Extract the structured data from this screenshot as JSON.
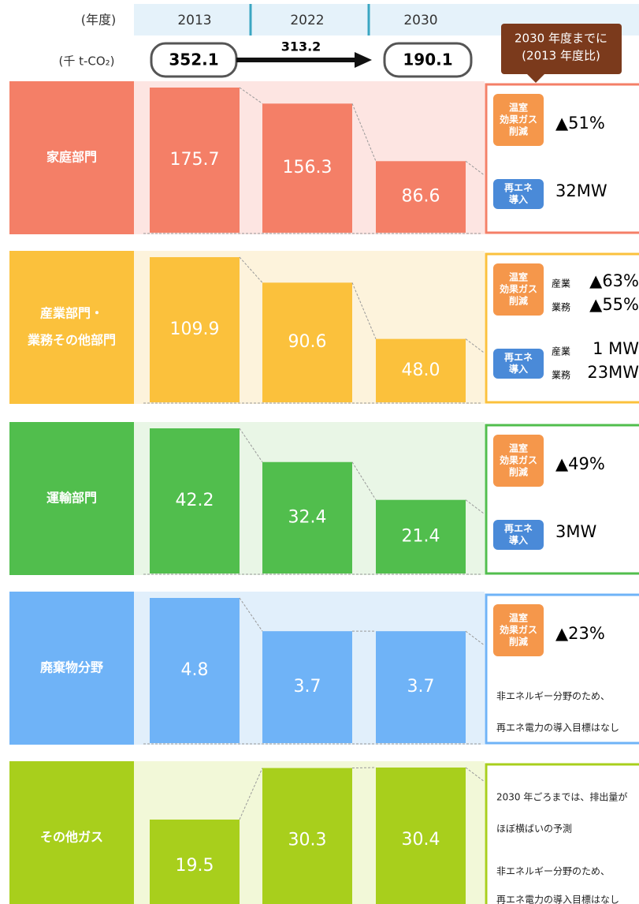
{
  "header": {
    "year_label": "(年度)",
    "years": [
      "2013",
      "2022",
      "2030"
    ],
    "unit_label": "(千 t-CO₂)",
    "totals": [
      "352.1",
      "313.2",
      "190.1"
    ],
    "callout": [
      "2030 年度までに",
      "(2013 年度比)"
    ]
  },
  "sectors": [
    {
      "name": [
        "家庭部門"
      ],
      "color": "#f47f67",
      "bg": "#fde5e2",
      "values": [
        175.7,
        156.3,
        86.6
      ],
      "value_labels": [
        "175.7",
        "156.3",
        "86.6"
      ],
      "ghg_tag": [
        "温室",
        "効果ガス",
        "削減"
      ],
      "ghg": [
        {
          "value": "▲51%"
        }
      ],
      "re_tag": [
        "再エネ",
        "導入"
      ],
      "re": [
        {
          "value": "32MW"
        }
      ]
    },
    {
      "name": [
        "産業部門・",
        "業務その他部門"
      ],
      "color": "#fbc13c",
      "bg": "#fdf3dc",
      "values": [
        109.9,
        90.6,
        48.0
      ],
      "value_labels": [
        "109.9",
        "90.6",
        "48.0"
      ],
      "ghg_tag": [
        "温室",
        "効果ガス",
        "削減"
      ],
      "ghg": [
        {
          "sub": "産業",
          "value": "▲63%"
        },
        {
          "sub": "業務",
          "value": "▲55%"
        }
      ],
      "re_tag": [
        "再エネ",
        "導入"
      ],
      "re": [
        {
          "sub": "産業",
          "value": "1 MW"
        },
        {
          "sub": "業務",
          "value": "23MW"
        }
      ]
    },
    {
      "name": [
        "運輸部門"
      ],
      "color": "#51be4d",
      "bg": "#e9f6e6",
      "values": [
        42.2,
        32.4,
        21.4
      ],
      "value_labels": [
        "42.2",
        "32.4",
        "21.4"
      ],
      "ghg_tag": [
        "温室",
        "効果ガス",
        "削減"
      ],
      "ghg": [
        {
          "value": "▲49%"
        }
      ],
      "re_tag": [
        "再エネ",
        "導入"
      ],
      "re": [
        {
          "value": "3MW"
        }
      ]
    },
    {
      "name": [
        "廃棄物分野"
      ],
      "color": "#6fb3f7",
      "bg": "#e1effb",
      "values": [
        4.8,
        3.7,
        3.7
      ],
      "value_labels": [
        "4.8",
        "3.7",
        "3.7"
      ],
      "ghg_tag": [
        "温室",
        "効果ガス",
        "削減"
      ],
      "ghg": [
        {
          "value": "▲23%"
        }
      ],
      "notes": [
        "非エネルギー分野のため、",
        "再エネ電力の導入目標はなし"
      ]
    },
    {
      "name": [
        "その他ガス"
      ],
      "color": "#a8cf1c",
      "bg": "#f2f8d8",
      "values": [
        19.5,
        30.3,
        30.4
      ],
      "value_labels": [
        "19.5",
        "30.3",
        "30.4"
      ],
      "notes": [
        "2030 年ごろまでは、排出量がほぼ横ばいの予測",
        "ほぼ横ばいの予測",
        "非エネルギー分野のため、",
        "再エネ電力の導入目標はなし"
      ]
    }
  ]
}
